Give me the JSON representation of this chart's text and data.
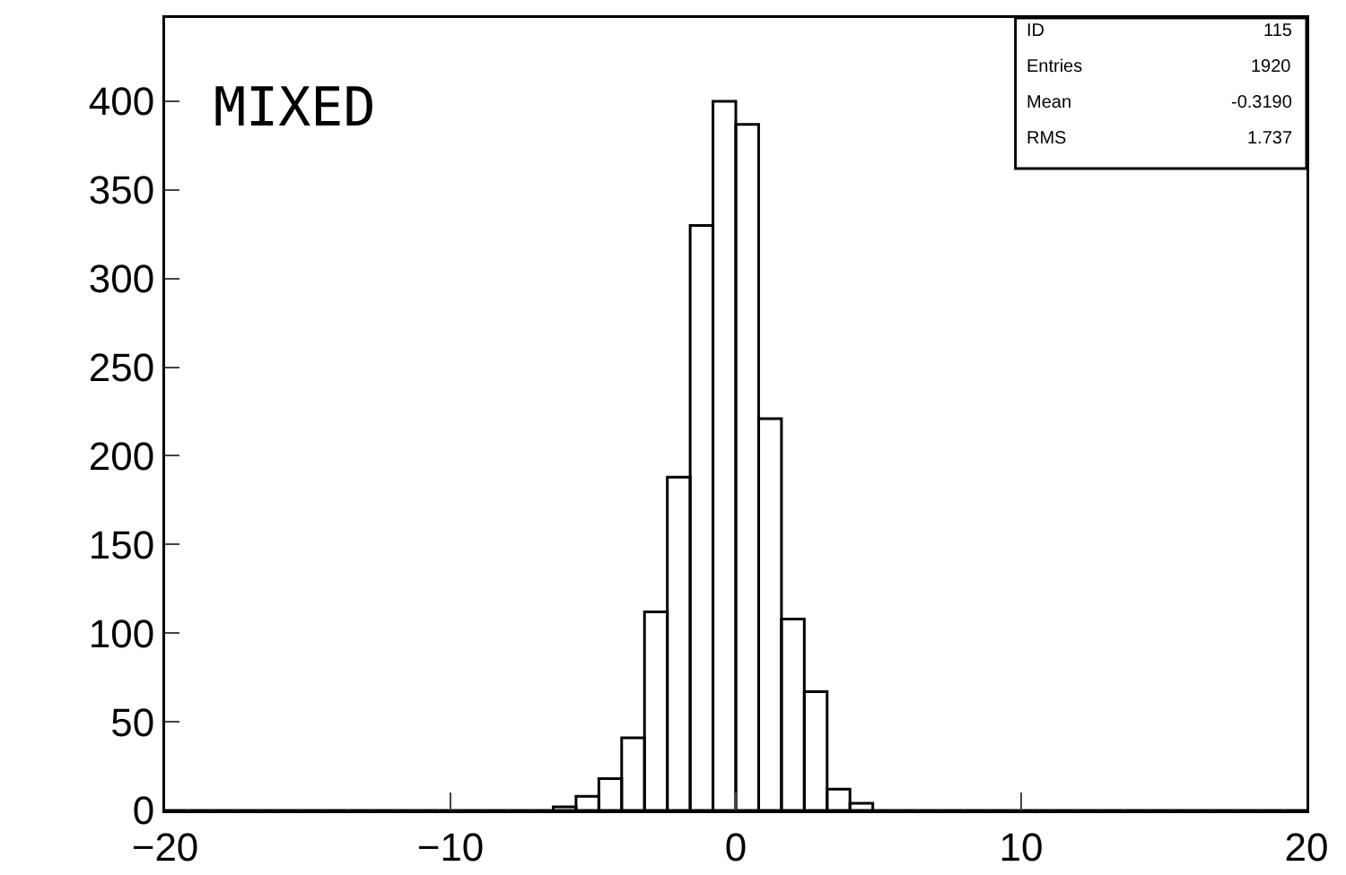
{
  "chart_data": {
    "type": "histogram",
    "title": "MIXED",
    "bins": [
      -20,
      -19.2,
      -18.4,
      -17.6,
      -16.8,
      -16,
      -15.2,
      -14.4,
      -13.6,
      -12.8,
      -12,
      -11.2,
      -10.4,
      -9.6,
      -8.8,
      -8,
      -7.2,
      -6.4,
      -5.6,
      -4.8,
      -4,
      -3.2,
      -2.4,
      -1.6,
      -0.8,
      0,
      0.8,
      1.6,
      2.4,
      3.2,
      4,
      4.8,
      5.6,
      6.4,
      7.2,
      8,
      8.8,
      9.6,
      10.4,
      11.2,
      12,
      12.8,
      13.6,
      14.4,
      15.2,
      16,
      16.8,
      17.6,
      18.4,
      19.2,
      20
    ],
    "values": [
      0,
      0,
      0,
      0,
      0,
      0,
      0,
      0,
      0,
      0,
      0,
      0,
      0,
      0,
      0,
      0,
      0,
      2,
      8,
      18,
      41,
      112,
      188,
      330,
      400,
      387,
      221,
      108,
      67,
      12,
      4,
      0,
      0,
      0,
      0,
      0,
      0,
      0,
      0,
      0,
      0,
      0,
      0,
      0,
      0,
      0,
      0,
      0,
      0,
      0
    ],
    "color": "#000000",
    "xlim": [
      -20,
      20
    ],
    "xticks": [
      {
        "value": -20,
        "label": "−20"
      },
      {
        "value": -10,
        "label": "−10"
      },
      0,
      10,
      20
    ],
    "ylim": [
      0,
      447
    ],
    "yticks": [
      0,
      50,
      100,
      150,
      200,
      250,
      300,
      350,
      400
    ],
    "grid": false,
    "legend": false,
    "annotations": [
      "ID 115",
      "Entries 1920",
      "Mean -0.3190",
      "RMS 1.737"
    ]
  }
}
